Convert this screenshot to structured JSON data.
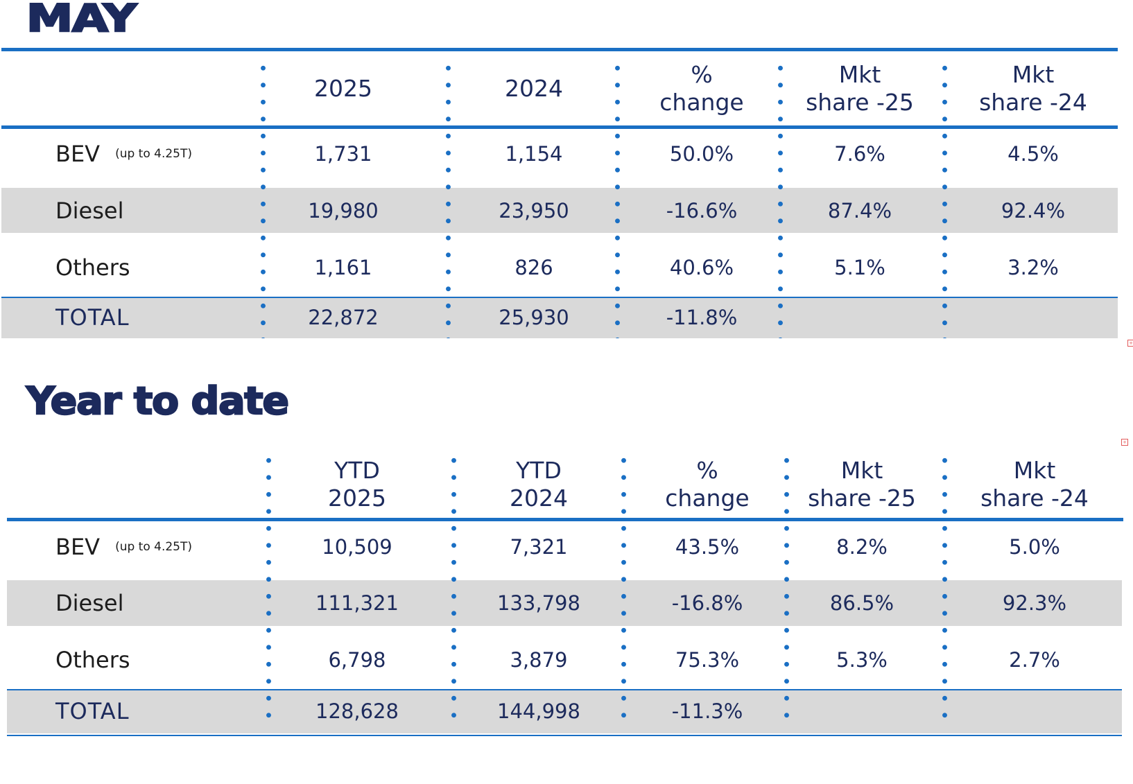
{
  "sections": [
    {
      "id": "may",
      "title": "MAY",
      "headers": [
        {
          "lines": [
            "2025"
          ]
        },
        {
          "lines": [
            "2024"
          ]
        },
        {
          "lines": [
            "%",
            "change"
          ]
        },
        {
          "lines": [
            "Mkt",
            "share -25"
          ]
        },
        {
          "lines": [
            "Mkt",
            "share -24"
          ]
        }
      ],
      "rows": [
        {
          "label": "BEV",
          "note": "(up to 4.25T)",
          "values": [
            "1,731",
            "1,154",
            "50.0%",
            "7.6%",
            "4.5%"
          ]
        },
        {
          "label": "Diesel",
          "note": "",
          "values": [
            "19,980",
            "23,950",
            "-16.6%",
            "87.4%",
            "92.4%"
          ]
        },
        {
          "label": "Others",
          "note": "",
          "values": [
            "1,161",
            "826",
            "40.6%",
            "5.1%",
            "3.2%"
          ]
        },
        {
          "label": "TOTAL",
          "note": "",
          "values": [
            "22,872",
            "25,930",
            "-11.8%",
            "",
            ""
          ]
        }
      ]
    },
    {
      "id": "ytd",
      "title": "Year to date",
      "headers": [
        {
          "lines": [
            "YTD",
            "2025"
          ]
        },
        {
          "lines": [
            "YTD",
            "2024"
          ]
        },
        {
          "lines": [
            "%",
            "change"
          ]
        },
        {
          "lines": [
            "Mkt",
            "share -25"
          ]
        },
        {
          "lines": [
            "Mkt",
            "share -24"
          ]
        }
      ],
      "rows": [
        {
          "label": "BEV",
          "note": "(up to 4.25T)",
          "values": [
            "10,509",
            "7,321",
            "43.5%",
            "8.2%",
            "5.0%"
          ]
        },
        {
          "label": "Diesel",
          "note": "",
          "values": [
            "111,321",
            "133,798",
            "-16.8%",
            "86.5%",
            "92.3%"
          ]
        },
        {
          "label": "Others",
          "note": "",
          "values": [
            "6,798",
            "3,879",
            "75.3%",
            "5.3%",
            "2.7%"
          ]
        },
        {
          "label": "TOTAL",
          "note": "",
          "values": [
            "128,628",
            "144,998",
            "-11.3%",
            "",
            ""
          ]
        }
      ]
    }
  ],
  "colors": {
    "accent": "#1a6fc4",
    "text": "#1c2a5c",
    "band": "#d9d9d9"
  }
}
